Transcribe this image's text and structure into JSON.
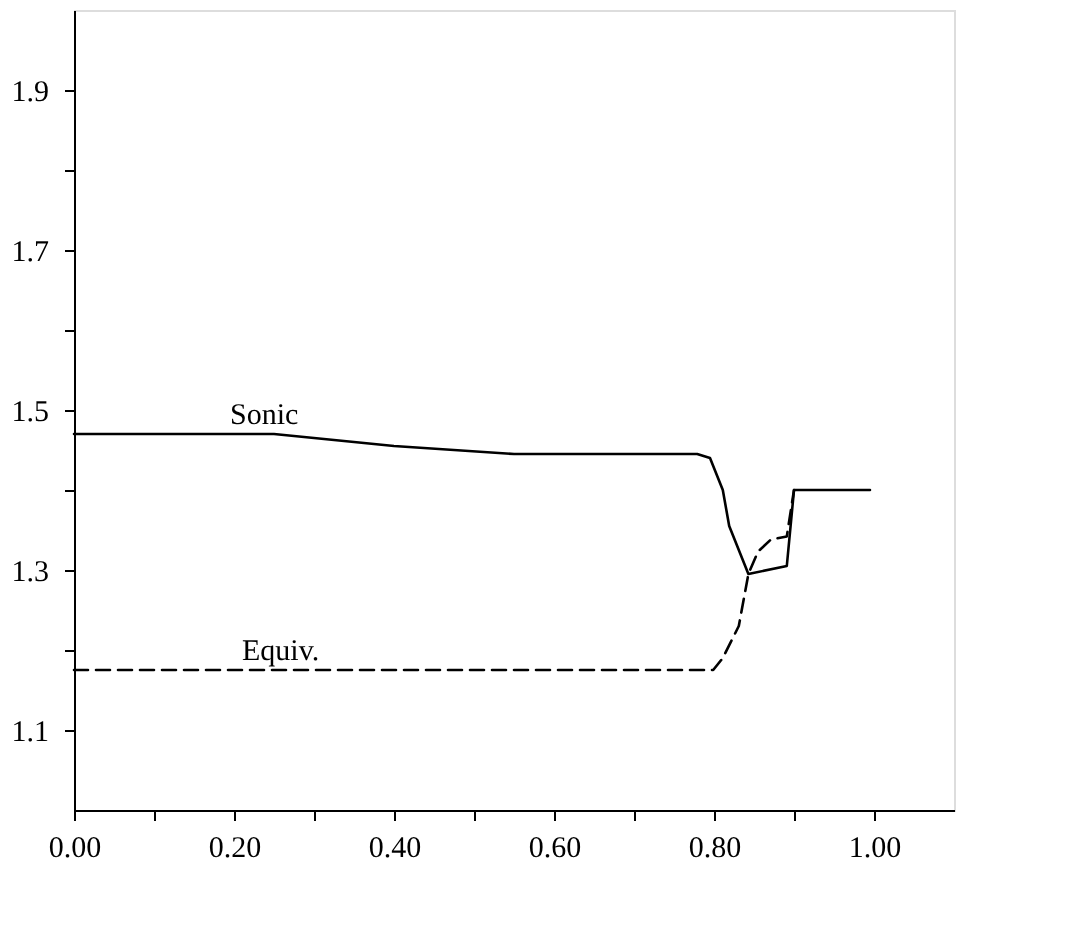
{
  "chart_data": {
    "type": "line",
    "series": [
      {
        "name": "Sonic",
        "color": "#000000",
        "line_style": "solid",
        "x": [
          0.0,
          0.25,
          0.4,
          0.55,
          0.779,
          0.795,
          0.811,
          0.819,
          0.843,
          0.891,
          0.9,
          0.995
        ],
        "values": [
          1.47,
          1.47,
          1.455,
          1.445,
          1.445,
          1.44,
          1.4,
          1.355,
          1.295,
          1.305,
          1.4,
          1.4
        ]
      },
      {
        "name": "Equiv.",
        "color": "#000000",
        "line_style": "dashed",
        "x": [
          0.0,
          0.799,
          0.811,
          0.831,
          0.843,
          0.855,
          0.871,
          0.891,
          0.9
        ],
        "values": [
          1.175,
          1.175,
          1.19,
          1.23,
          1.295,
          1.323,
          1.338,
          1.342,
          1.4
        ]
      }
    ],
    "xlim": [
      0.0,
      1.1
    ],
    "ylim": [
      1.0,
      2.0
    ],
    "xticks": [
      {
        "value": 0,
        "label": "0.00"
      },
      {
        "value": 0.1,
        "label": null
      },
      {
        "value": 0.2,
        "label": "0.20"
      },
      {
        "value": 0.3,
        "label": null
      },
      {
        "value": 0.4,
        "label": "0.40"
      },
      {
        "value": 0.5,
        "label": null
      },
      {
        "value": 0.6,
        "label": "0.60"
      },
      {
        "value": 0.7,
        "label": null
      },
      {
        "value": 0.8,
        "label": "0.80"
      },
      {
        "value": 0.9,
        "label": null
      },
      {
        "value": 1.0,
        "label": "1.00"
      }
    ],
    "yticks": [
      1.1,
      {
        "value": 1.2,
        "label": null
      },
      1.3,
      {
        "value": 1.4,
        "label": null
      },
      1.5,
      {
        "value": 1.6,
        "label": null
      },
      1.7,
      {
        "value": 1.8,
        "label": null
      },
      1.9
    ],
    "grid": false,
    "marker": "none"
  }
}
